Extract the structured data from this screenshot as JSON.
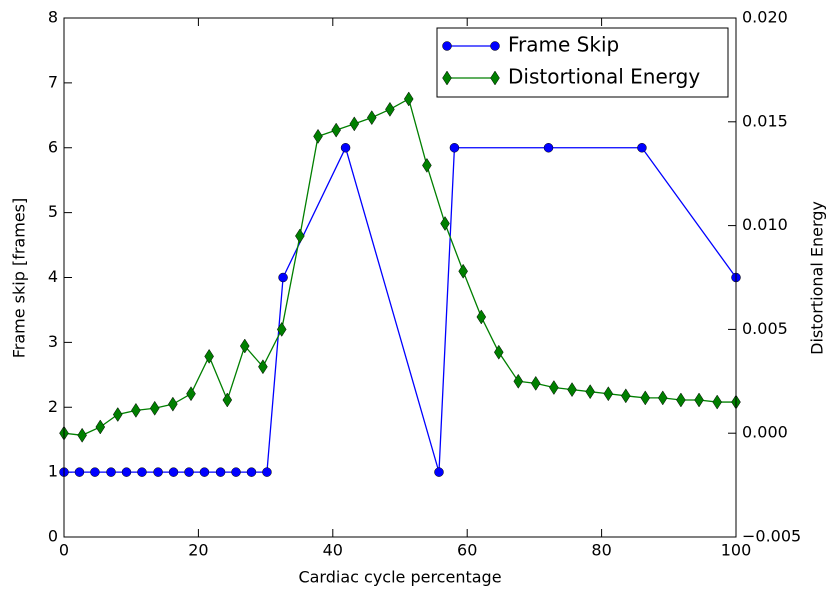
{
  "chart_data": {
    "type": "line",
    "xlabel": "Cardiac cycle percentage",
    "ylabel": "Frame skip [frames]",
    "y2label": "Distortional Energy",
    "xlim": [
      0,
      100
    ],
    "xticks": [
      0,
      20,
      40,
      60,
      80,
      100
    ],
    "ylim": [
      0,
      8
    ],
    "yticks": [
      0,
      1,
      2,
      3,
      4,
      5,
      6,
      7,
      8
    ],
    "y2lim": [
      -0.005,
      0.02
    ],
    "y2ticks": [
      {
        "value": -0.005,
        "label": "−0.005"
      },
      {
        "value": 0,
        "label": "0.000"
      },
      {
        "value": 0.005,
        "label": "0.005"
      },
      {
        "value": 0.01,
        "label": "0.010"
      },
      {
        "value": 0.015,
        "label": "0.015"
      },
      {
        "value": 0.02,
        "label": "0.020"
      }
    ],
    "legend": "upper right",
    "series": [
      {
        "name": "Frame Skip",
        "color": "#0000ff",
        "marker": "circle",
        "x": [
          0,
          2.3,
          4.6,
          7.0,
          9.3,
          11.6,
          14.0,
          16.3,
          18.6,
          20.9,
          23.3,
          25.6,
          27.9,
          30.2,
          32.6,
          41.9,
          55.8,
          58.1,
          72.1,
          86.0,
          100
        ],
        "values": [
          1,
          1,
          1,
          1,
          1,
          1,
          1,
          1,
          1,
          1,
          1,
          1,
          1,
          1,
          4,
          6,
          1,
          6,
          6,
          6,
          4
        ]
      },
      {
        "name": "Distortional Energy",
        "color": "#007f00",
        "marker": "diamond",
        "axis": "y2",
        "x": [
          0,
          2.7,
          5.4,
          8.0,
          10.7,
          13.5,
          16.2,
          18.9,
          21.6,
          24.3,
          26.9,
          29.6,
          32.4,
          35.1,
          37.8,
          40.5,
          43.2,
          45.8,
          48.5,
          51.3,
          54.0,
          56.7,
          59.4,
          62.1,
          64.7,
          67.6,
          70.2,
          72.9,
          75.6,
          78.3,
          81.0,
          83.6,
          86.5,
          89.1,
          91.8,
          94.5,
          97.2,
          100
        ],
        "values": [
          0.0,
          -0.0001,
          0.0003,
          0.0009,
          0.0011,
          0.0012,
          0.0014,
          0.0019,
          0.0037,
          0.0016,
          0.0042,
          0.0032,
          0.005,
          0.0095,
          0.0143,
          0.0146,
          0.0149,
          0.0152,
          0.0156,
          0.0161,
          0.0129,
          0.0101,
          0.0078,
          0.0056,
          0.0039,
          0.0025,
          0.0024,
          0.0022,
          0.0021,
          0.002,
          0.0019,
          0.0018,
          0.0017,
          0.0017,
          0.0016,
          0.0016,
          0.0015,
          0.0015
        ]
      }
    ]
  }
}
